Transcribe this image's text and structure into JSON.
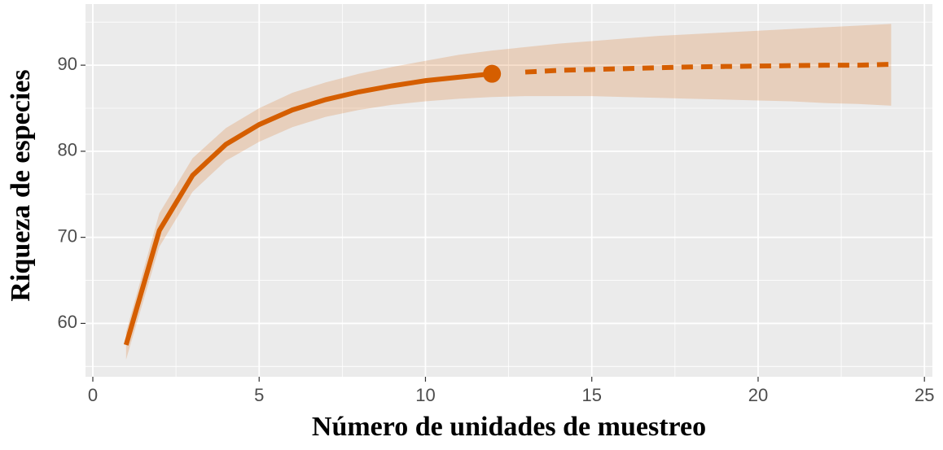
{
  "chart_data": {
    "type": "line",
    "x_label": "Número de unidades de muestreo",
    "y_label": "Riqueza de especies",
    "xlim": [
      -0.22,
      25.24
    ],
    "ylim": [
      53.8,
      97.1
    ],
    "xticks": [
      0,
      5,
      10,
      15,
      20,
      25
    ],
    "yticks": [
      60,
      70,
      80,
      90
    ],
    "grid": true,
    "minor_grid": true,
    "color": "#d55e00",
    "series": [
      {
        "linestyle": "solid",
        "x": [
          1,
          2,
          3,
          4,
          5,
          6,
          7,
          8,
          9,
          10,
          11,
          12
        ],
        "values": [
          57.5,
          70.8,
          77.2,
          80.8,
          83.1,
          84.8,
          86.0,
          86.9,
          87.6,
          88.2,
          88.6,
          89.0
        ]
      },
      {
        "linestyle": "dashed",
        "x": [
          13,
          14,
          15,
          16,
          17,
          18,
          19,
          20,
          21,
          22,
          23,
          24
        ],
        "values": [
          89.2,
          89.4,
          89.5,
          89.6,
          89.7,
          89.8,
          89.85,
          89.9,
          89.95,
          90.0,
          90.0,
          90.1
        ]
      }
    ],
    "band": {
      "x": [
        1,
        2,
        3,
        4,
        5,
        6,
        7,
        8,
        9,
        10,
        11,
        12,
        13,
        14,
        15,
        16,
        17,
        18,
        19,
        20,
        21,
        22,
        23,
        24
      ],
      "lower": [
        55.8,
        68.9,
        75.3,
        78.9,
        81.1,
        82.8,
        84.0,
        84.8,
        85.4,
        85.8,
        86.1,
        86.3,
        86.4,
        86.4,
        86.4,
        86.3,
        86.2,
        86.1,
        86.0,
        85.9,
        85.8,
        85.6,
        85.5,
        85.3
      ],
      "upper": [
        59.0,
        72.8,
        79.2,
        82.7,
        85.0,
        86.8,
        88.0,
        89.0,
        89.8,
        90.5,
        91.2,
        91.7,
        92.1,
        92.5,
        92.8,
        93.1,
        93.4,
        93.6,
        93.8,
        94.0,
        94.2,
        94.4,
        94.6,
        94.8
      ]
    },
    "point": {
      "x": 12,
      "y": 89.0
    }
  }
}
